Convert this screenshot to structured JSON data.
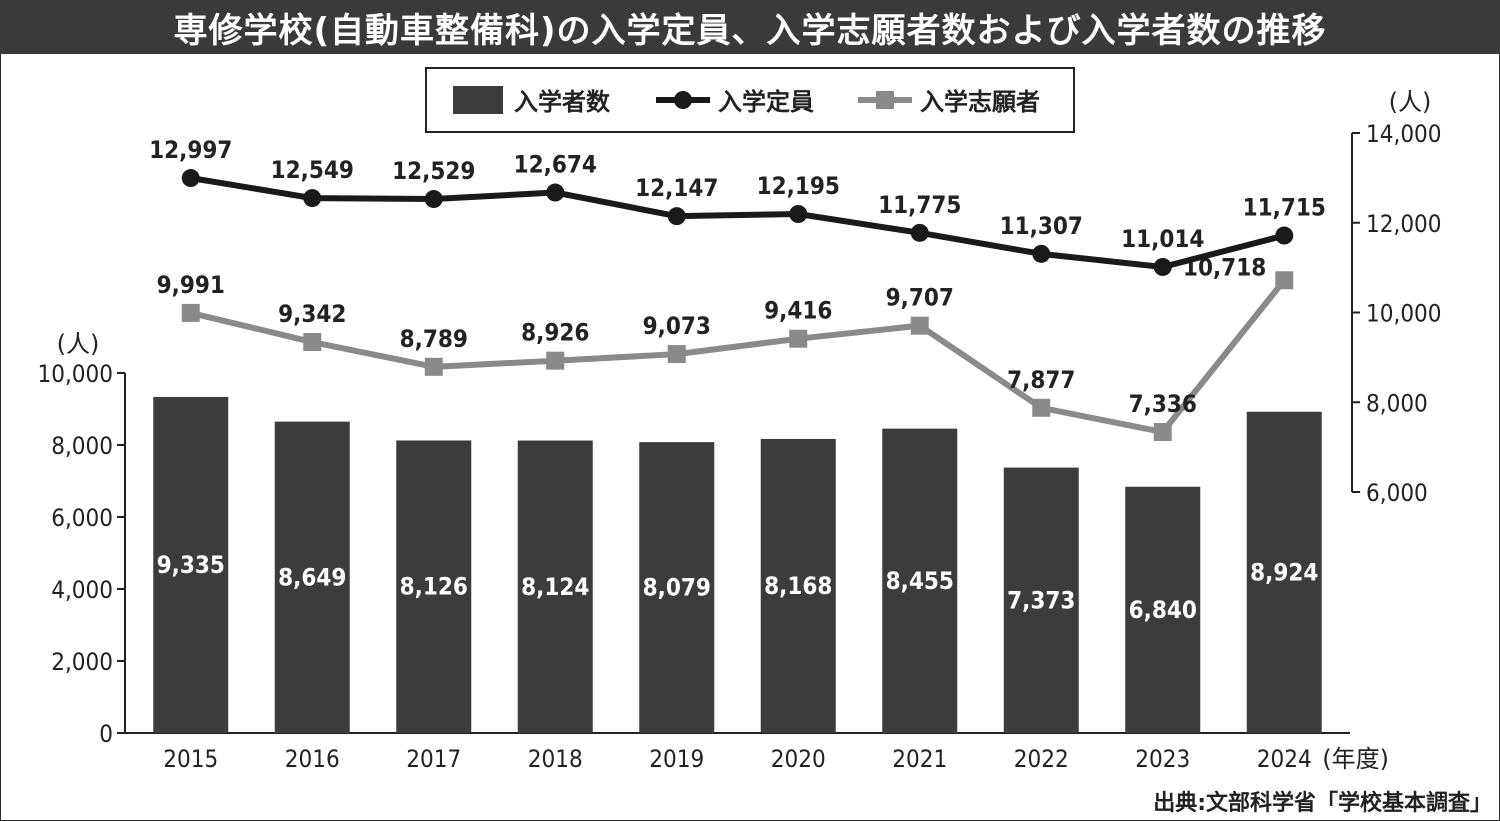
{
  "title": "専修学校(自動車整備科)の入学定員、入学志願者数および入学者数の推移",
  "source": "出典:文部科学省「学校基本調査」",
  "colors": {
    "title_bg": "#3a3a3a",
    "bar": "#3c3b3d",
    "capacity_line": "#1a1a1a",
    "applicants_line": "#8a8a8a"
  },
  "chart_data": {
    "type": "bar",
    "categories": [
      "2015",
      "2016",
      "2017",
      "2018",
      "2019",
      "2020",
      "2021",
      "2022",
      "2023",
      "2024"
    ],
    "x_unit": "(年度)",
    "left_axis": {
      "unit": "(人)",
      "ylim": [
        0,
        10000
      ],
      "ticks": [
        "0",
        "2,000",
        "4,000",
        "6,000",
        "8,000",
        "10,000"
      ]
    },
    "right_axis": {
      "unit": "(人)",
      "ylim": [
        6000,
        14000
      ],
      "ticks": [
        "6,000",
        "8,000",
        "10,000",
        "12,000",
        "14,000"
      ]
    },
    "legend_position": "top-center",
    "grid": false,
    "series": [
      {
        "name": "入学者数",
        "type": "bar",
        "axis": "left",
        "values": [
          9335,
          8649,
          8126,
          8124,
          8079,
          8168,
          8455,
          7373,
          6840,
          8924
        ],
        "labels": [
          "9,335",
          "8,649",
          "8,126",
          "8,124",
          "8,079",
          "8,168",
          "8,455",
          "7,373",
          "6,840",
          "8,924"
        ]
      },
      {
        "name": "入学定員",
        "type": "line",
        "marker": "circle",
        "axis": "right",
        "values": [
          12997,
          12549,
          12529,
          12674,
          12147,
          12195,
          11775,
          11307,
          11014,
          11715
        ],
        "labels": [
          "12,997",
          "12,549",
          "12,529",
          "12,674",
          "12,147",
          "12,195",
          "11,775",
          "11,307",
          "11,014",
          "11,715"
        ]
      },
      {
        "name": "入学志願者",
        "type": "line",
        "marker": "square",
        "axis": "right",
        "values": [
          9991,
          9342,
          8789,
          8926,
          9073,
          9416,
          9707,
          7877,
          7336,
          10718
        ],
        "labels": [
          "9,991",
          "9,342",
          "8,789",
          "8,926",
          "9,073",
          "9,416",
          "9,707",
          "7,877",
          "7,336",
          "10,718"
        ]
      }
    ]
  }
}
